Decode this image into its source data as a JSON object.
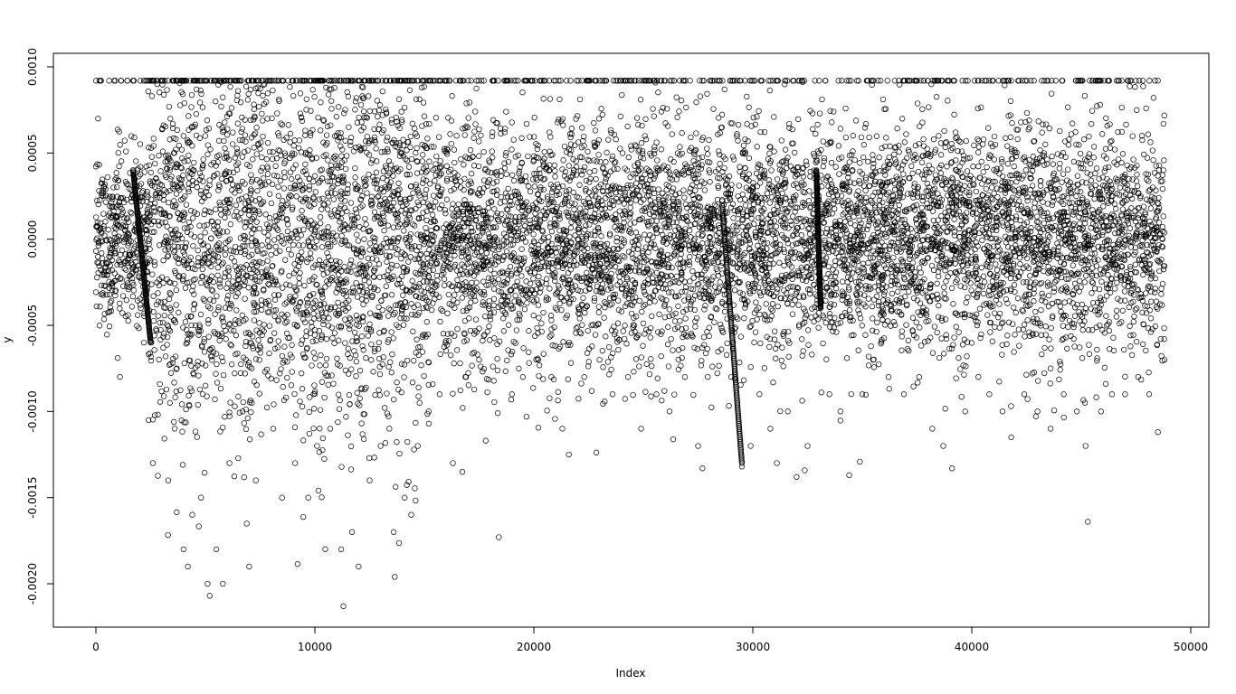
{
  "chart_data": {
    "type": "scatter",
    "title": "",
    "xlabel": "Index",
    "ylabel": "y",
    "xlim": [
      0,
      48800
    ],
    "ylim": [
      -0.00213,
      0.00092
    ],
    "x_ticks": [
      0,
      10000,
      20000,
      30000,
      40000,
      50000
    ],
    "x_tick_labels": [
      "0",
      "10000",
      "20000",
      "30000",
      "40000",
      "50000"
    ],
    "y_ticks": [
      -0.002,
      -0.0015,
      -0.001,
      -0.0005,
      0.0,
      0.0005,
      0.001
    ],
    "y_tick_labels": [
      "-0.0020",
      "-0.0015",
      "-0.0010",
      "-0.0005",
      "0.0000",
      "0.0005",
      "0.0010"
    ],
    "marker": "open-circle",
    "grid": false,
    "legend": "none",
    "series": [
      {
        "n_points": 48800,
        "points": [
          [
            150,
            5e-05
          ],
          [
            400,
            -0.0002
          ],
          [
            800,
            0.0003
          ],
          [
            1100,
            -0.0008
          ],
          [
            1500,
            0.0001
          ],
          [
            1900,
            0.0004
          ],
          [
            2200,
            -0.0006
          ],
          [
            2400,
            -0.00105
          ],
          [
            2600,
            -0.0013
          ],
          [
            2800,
            0.0009
          ],
          [
            3300,
            -0.0014
          ],
          [
            3600,
            -0.0011
          ],
          [
            4000,
            -0.0018
          ],
          [
            4200,
            -0.0019
          ],
          [
            4400,
            -0.0016
          ],
          [
            4800,
            -0.0015
          ],
          [
            5100,
            -0.002
          ],
          [
            5200,
            -0.00207
          ],
          [
            5500,
            -0.0018
          ],
          [
            5800,
            -0.002
          ],
          [
            6100,
            -0.0013
          ],
          [
            6700,
            -0.001
          ],
          [
            7000,
            -0.0019
          ],
          [
            7300,
            -0.0014
          ],
          [
            7700,
            0.0009
          ],
          [
            8100,
            -0.0011
          ],
          [
            8500,
            -0.0015
          ],
          [
            9100,
            -0.0013
          ],
          [
            9700,
            -0.0015
          ],
          [
            10100,
            -0.0012
          ],
          [
            10700,
            -0.0011
          ],
          [
            11200,
            -0.0018
          ],
          [
            11300,
            -0.00213
          ],
          [
            11700,
            -0.0017
          ],
          [
            12000,
            -0.0019
          ],
          [
            12500,
            -0.0014
          ],
          [
            13000,
            -0.0012
          ],
          [
            13400,
            -0.0011
          ],
          [
            13600,
            -0.0017
          ],
          [
            13650,
            -0.00196
          ],
          [
            14100,
            -0.0015
          ],
          [
            14400,
            -0.0016
          ],
          [
            14700,
            -0.0012
          ],
          [
            15200,
            -0.001
          ],
          [
            15700,
            -0.0009
          ],
          [
            16300,
            -0.0013
          ],
          [
            16900,
            -0.0008
          ],
          [
            17500,
            -0.0007
          ],
          [
            17800,
            -0.00117
          ],
          [
            18400,
            -0.00173
          ],
          [
            19000,
            -0.0009
          ],
          [
            19500,
            -0.0008
          ],
          [
            20200,
            -0.0007
          ],
          [
            20800,
            -0.0008
          ],
          [
            21300,
            -0.0011
          ],
          [
            21600,
            -0.00125
          ],
          [
            22300,
            -0.0008
          ],
          [
            23000,
            -0.0007
          ],
          [
            23600,
            -0.0009
          ],
          [
            24300,
            -0.0008
          ],
          [
            24900,
            -0.0011
          ],
          [
            25600,
            -0.0009
          ],
          [
            26200,
            -0.001
          ],
          [
            26900,
            -0.0008
          ],
          [
            27500,
            -0.0012
          ],
          [
            27700,
            -0.00133
          ],
          [
            28000,
            0.0004
          ],
          [
            28700,
            0.0001
          ],
          [
            29100,
            -0.0006
          ],
          [
            29500,
            -0.00132
          ],
          [
            29900,
            -0.0012
          ],
          [
            30300,
            -0.0009
          ],
          [
            30800,
            -0.0011
          ],
          [
            31100,
            -0.0013
          ],
          [
            31600,
            -0.001
          ],
          [
            32000,
            -0.00138
          ],
          [
            32500,
            -0.0012
          ],
          [
            33000,
            -0.0004
          ],
          [
            33500,
            -0.0009
          ],
          [
            34000,
            -0.001
          ],
          [
            34400,
            -0.00137
          ],
          [
            35000,
            -0.0009
          ],
          [
            35500,
            -0.0007
          ],
          [
            36200,
            -0.0008
          ],
          [
            36900,
            -0.0009
          ],
          [
            37600,
            -0.0008
          ],
          [
            38200,
            -0.0011
          ],
          [
            38700,
            -0.0012
          ],
          [
            39100,
            -0.00133
          ],
          [
            39700,
            -0.001
          ],
          [
            40300,
            -0.0008
          ],
          [
            40800,
            -0.0009
          ],
          [
            41400,
            -0.001
          ],
          [
            41800,
            -0.00115
          ],
          [
            42400,
            -0.0009
          ],
          [
            43000,
            -0.001
          ],
          [
            43600,
            -0.0011
          ],
          [
            44200,
            -0.0009
          ],
          [
            44800,
            -0.001
          ],
          [
            45200,
            -0.0012
          ],
          [
            45300,
            -0.00164
          ],
          [
            45900,
            -0.001
          ],
          [
            46400,
            -0.0009
          ],
          [
            47000,
            -0.0009
          ],
          [
            47600,
            -0.0008
          ],
          [
            48100,
            -0.0009
          ],
          [
            48500,
            -0.00112
          ],
          [
            48800,
            -0.0007
          ]
        ]
      }
    ]
  }
}
